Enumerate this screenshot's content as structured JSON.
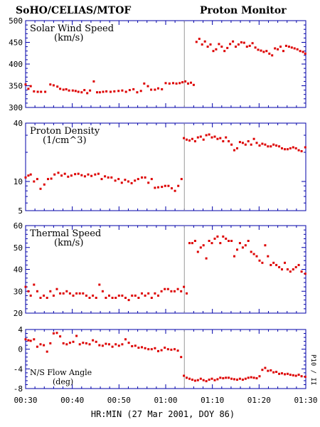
{
  "header": {
    "left_title": "SoHO/CELIAS/MTOF",
    "right_title": "Proton Monitor"
  },
  "side_label": "P10 / II",
  "colors": {
    "points": "#dd0000",
    "axis": "#0000aa",
    "marker": "#999999"
  },
  "chart_data": [
    {
      "type": "scatter",
      "title": "Solar Wind Speed",
      "subtitle": "(km/s)",
      "x_unit": "minute",
      "xlim": [
        30,
        90
      ],
      "ylim": [
        300,
        500
      ],
      "yticks": [
        300,
        350,
        400,
        450,
        500
      ],
      "ytick_labels": [
        "300",
        "350",
        "400",
        "450",
        "500"
      ],
      "event_line_x": 64,
      "x": [
        30,
        30.6,
        31.1,
        31.8,
        32.6,
        33.3,
        34.2,
        35.3,
        36.0,
        36.8,
        37.4,
        38.1,
        38.7,
        39.3,
        40.1,
        40.7,
        41.3,
        42.0,
        42.6,
        43.2,
        43.8,
        44.6,
        45.3,
        45.9,
        46.6,
        47.3,
        48.2,
        49.0,
        49.9,
        50.7,
        51.5,
        52.3,
        53.1,
        53.9,
        54.7,
        55.4,
        56.2,
        56.9,
        57.7,
        58.4,
        59.2,
        60.0,
        60.8,
        61.6,
        62.3,
        63.0,
        63.6,
        64.2,
        64.8,
        65.4,
        66.0,
        66.6,
        67.2,
        67.8,
        68.4,
        69.0,
        69.6,
        70.2,
        70.8,
        71.4,
        72.0,
        72.6,
        73.2,
        73.8,
        74.4,
        75.0,
        75.6,
        76.2,
        76.8,
        77.4,
        78.0,
        78.6,
        79.2,
        79.8,
        80.4,
        81.0,
        81.6,
        82.2,
        82.8,
        83.4,
        84.0,
        84.6,
        85.2,
        85.8,
        86.4,
        87.0,
        87.6,
        88.2,
        88.8,
        89.4,
        89.9
      ],
      "y": [
        353,
        343,
        349,
        337,
        336,
        336,
        336,
        353,
        351,
        348,
        343,
        341,
        342,
        339,
        339,
        338,
        336,
        335,
        340,
        333,
        339,
        360,
        335,
        335,
        336,
        337,
        336,
        337,
        338,
        339,
        336,
        340,
        342,
        335,
        338,
        355,
        349,
        341,
        341,
        344,
        342,
        356,
        355,
        356,
        355,
        356,
        358,
        360,
        355,
        357,
        352,
        451,
        458,
        445,
        452,
        440,
        445,
        430,
        434,
        446,
        440,
        430,
        437,
        446,
        452,
        440,
        445,
        450,
        449,
        440,
        442,
        448,
        438,
        433,
        431,
        428,
        430,
        424,
        420,
        436,
        434,
        440,
        430,
        442,
        440,
        438,
        436,
        434,
        430,
        428,
        424
      ],
      "x_offset_note": "",
      "series_color": "#dd0000"
    },
    {
      "type": "scatter",
      "title": "Proton Density",
      "subtitle": "(1/cm^3)",
      "xlim": [
        30,
        90
      ],
      "ylim": [
        5,
        40
      ],
      "scale": "log",
      "yticks": [
        5,
        10,
        40
      ],
      "ytick_labels": [
        "5",
        "10",
        "40"
      ],
      "event_line_x": 64,
      "x": [
        30,
        30.6,
        31.1,
        31.8,
        32.5,
        33.2,
        34.0,
        34.8,
        35.5,
        36.2,
        37.0,
        37.7,
        38.4,
        39.1,
        39.8,
        40.6,
        41.3,
        42.0,
        42.7,
        43.4,
        44.1,
        44.9,
        45.6,
        46.3,
        47.0,
        47.7,
        48.4,
        49.2,
        49.9,
        50.6,
        51.3,
        52.0,
        52.7,
        53.4,
        54.1,
        54.9,
        55.6,
        56.3,
        57.0,
        57.7,
        58.4,
        59.2,
        59.9,
        60.6,
        61.3,
        62.0,
        62.7,
        63.4,
        63.9,
        64.5,
        65.1,
        65.7,
        66.3,
        66.9,
        67.5,
        68.1,
        68.7,
        69.3,
        69.9,
        70.5,
        71.1,
        71.7,
        72.3,
        72.9,
        73.5,
        74.1,
        74.7,
        75.3,
        75.9,
        76.5,
        77.1,
        77.7,
        78.3,
        78.9,
        79.5,
        80.1,
        80.7,
        81.3,
        81.9,
        82.5,
        83.1,
        83.7,
        84.3,
        84.9,
        85.5,
        86.1,
        86.7,
        87.3,
        87.9,
        88.5,
        89.1,
        89.9
      ],
      "y": [
        11.0,
        11.5,
        11.8,
        10.0,
        10.6,
        8.4,
        9.3,
        10.6,
        10.7,
        11.8,
        12.3,
        11.5,
        12.0,
        11.2,
        11.5,
        11.9,
        12.0,
        11.6,
        11.3,
        11.8,
        11.4,
        11.8,
        12.0,
        10.6,
        11.3,
        11.0,
        11.0,
        10.2,
        10.6,
        9.7,
        10.4,
        10.0,
        9.6,
        10.2,
        10.6,
        11.0,
        11.0,
        9.7,
        10.6,
        8.6,
        8.7,
        8.8,
        9.0,
        9.0,
        8.5,
        8.0,
        9.0,
        10.6,
        28.0,
        27.0,
        26.5,
        27.5,
        26.0,
        28.5,
        29.0,
        27.0,
        30.0,
        30.5,
        28.5,
        29.0,
        27.5,
        28.0,
        26.0,
        28.5,
        26.0,
        24.0,
        21.0,
        22.0,
        25.5,
        25.0,
        24.0,
        26.0,
        24.0,
        27.5,
        25.0,
        23.5,
        24.5,
        24.0,
        23.0,
        23.0,
        24.0,
        23.5,
        23.0,
        22.0,
        21.5,
        21.5,
        22.0,
        22.5,
        22.0,
        21.0,
        20.5,
        22.5
      ]
    },
    {
      "type": "scatter",
      "title": "Thermal Speed",
      "subtitle": "(km/s)",
      "xlim": [
        30,
        90
      ],
      "ylim": [
        20,
        60
      ],
      "yticks": [
        20,
        30,
        40,
        50,
        60
      ],
      "ytick_labels": [
        "20",
        "30",
        "40",
        "50",
        "60"
      ],
      "event_line_x": 64,
      "x": [
        30,
        30.6,
        31.1,
        31.8,
        32.5,
        33.2,
        33.9,
        34.6,
        35.3,
        36.0,
        36.7,
        37.4,
        38.1,
        38.8,
        39.5,
        40.2,
        40.9,
        41.6,
        42.3,
        43.0,
        43.7,
        44.4,
        45.1,
        45.8,
        46.5,
        47.2,
        47.9,
        48.6,
        49.3,
        50.0,
        50.7,
        51.4,
        52.1,
        52.8,
        53.5,
        54.2,
        54.9,
        55.6,
        56.3,
        57.0,
        57.7,
        58.4,
        59.1,
        59.8,
        60.5,
        61.2,
        61.9,
        62.6,
        63.3,
        63.9,
        64.5,
        65.1,
        65.7,
        66.3,
        66.9,
        67.5,
        68.1,
        68.7,
        69.3,
        69.9,
        70.5,
        71.1,
        71.7,
        72.3,
        72.9,
        73.5,
        74.1,
        74.7,
        75.3,
        75.9,
        76.5,
        77.1,
        77.7,
        78.3,
        78.9,
        79.5,
        80.1,
        80.7,
        81.3,
        81.9,
        82.5,
        83.1,
        83.7,
        84.3,
        84.9,
        85.5,
        86.1,
        86.7,
        87.3,
        87.9,
        88.5,
        89.1,
        89.9
      ],
      "y": [
        32,
        30,
        28,
        33,
        30,
        27,
        28,
        27,
        30,
        28,
        31,
        29,
        29,
        30,
        29,
        28,
        29,
        29,
        29,
        28,
        27,
        28,
        27,
        33,
        30,
        27,
        28,
        27,
        27,
        28,
        28,
        27,
        26,
        28,
        28,
        27,
        29,
        28,
        29,
        27,
        29,
        28,
        30,
        31,
        31,
        30,
        30,
        31,
        30,
        32,
        29,
        52,
        52,
        53,
        48,
        50,
        51,
        45,
        53,
        52,
        54,
        55,
        52,
        55,
        54,
        53,
        53,
        46,
        49,
        52,
        50,
        51,
        53,
        48,
        47,
        46,
        44,
        43,
        51,
        46,
        42,
        43,
        42,
        41,
        40,
        43,
        40,
        39,
        40,
        41,
        42,
        39,
        38
      ]
    },
    {
      "type": "scatter",
      "title": "N/S Flow Angle",
      "subtitle": "(deg)",
      "xlim": [
        30,
        90
      ],
      "ylim": [
        -8,
        4
      ],
      "yticks": [
        -8,
        -4,
        0,
        4
      ],
      "ytick_labels": [
        "-8",
        "-4",
        "0",
        "4"
      ],
      "event_line_x": 64,
      "xticks": [
        30,
        40,
        50,
        60,
        70,
        80,
        90
      ],
      "xtick_labels": [
        "00:30",
        "00:40",
        "00:50",
        "01:00",
        "01:10",
        "01:20",
        "01:30"
      ],
      "xlabel": "HR:MIN (27 Mar 2001, DOY 86)",
      "x": [
        30,
        30.6,
        31.1,
        31.8,
        32.5,
        33.2,
        33.9,
        34.6,
        35.3,
        36.0,
        36.7,
        37.4,
        38.1,
        38.8,
        39.5,
        40.2,
        40.9,
        41.6,
        42.3,
        43.0,
        43.7,
        44.4,
        45.1,
        45.8,
        46.5,
        47.2,
        47.9,
        48.6,
        49.3,
        50.0,
        50.7,
        51.4,
        52.1,
        52.8,
        53.5,
        54.2,
        54.9,
        55.6,
        56.3,
        57.0,
        57.7,
        58.4,
        59.1,
        59.8,
        60.5,
        61.2,
        61.9,
        62.6,
        63.3,
        63.9,
        64.5,
        65.1,
        65.7,
        66.3,
        66.9,
        67.5,
        68.1,
        68.7,
        69.3,
        69.9,
        70.5,
        71.1,
        71.7,
        72.3,
        72.9,
        73.5,
        74.1,
        74.7,
        75.3,
        75.9,
        76.5,
        77.1,
        77.7,
        78.3,
        78.9,
        79.5,
        80.1,
        80.7,
        81.3,
        81.9,
        82.5,
        83.1,
        83.7,
        84.3,
        84.9,
        85.5,
        86.1,
        86.7,
        87.3,
        87.9,
        88.5,
        89.1,
        89.9
      ],
      "y": [
        2.0,
        1.8,
        1.7,
        2.0,
        0.5,
        1.0,
        0.8,
        -0.5,
        1.2,
        3.2,
        3.3,
        2.6,
        1.2,
        1.0,
        1.3,
        1.5,
        2.7,
        1.0,
        1.3,
        1.2,
        1.0,
        1.8,
        1.5,
        0.8,
        0.7,
        1.1,
        1.0,
        0.5,
        1.0,
        0.7,
        1.0,
        2.0,
        1.3,
        0.6,
        0.7,
        0.3,
        0.4,
        0.2,
        0.0,
        0.0,
        0.2,
        -0.4,
        -0.2,
        0.3,
        0.0,
        -0.1,
        0.0,
        -0.3,
        -1.6,
        -5.4,
        -5.8,
        -6.0,
        -6.2,
        -6.4,
        -6.3,
        -6.0,
        -6.3,
        -6.5,
        -6.2,
        -6.0,
        -6.3,
        -6.1,
        -5.8,
        -5.9,
        -5.8,
        -5.8,
        -6.0,
        -6.1,
        -6.2,
        -6.0,
        -6.2,
        -6.0,
        -5.8,
        -5.7,
        -5.8,
        -5.9,
        -5.5,
        -4.2,
        -3.8,
        -4.4,
        -4.3,
        -4.7,
        -4.6,
        -5.0,
        -4.9,
        -5.1,
        -5.0,
        -5.2,
        -5.3,
        -5.4,
        -5.2,
        -5.5,
        -5.6
      ]
    }
  ]
}
